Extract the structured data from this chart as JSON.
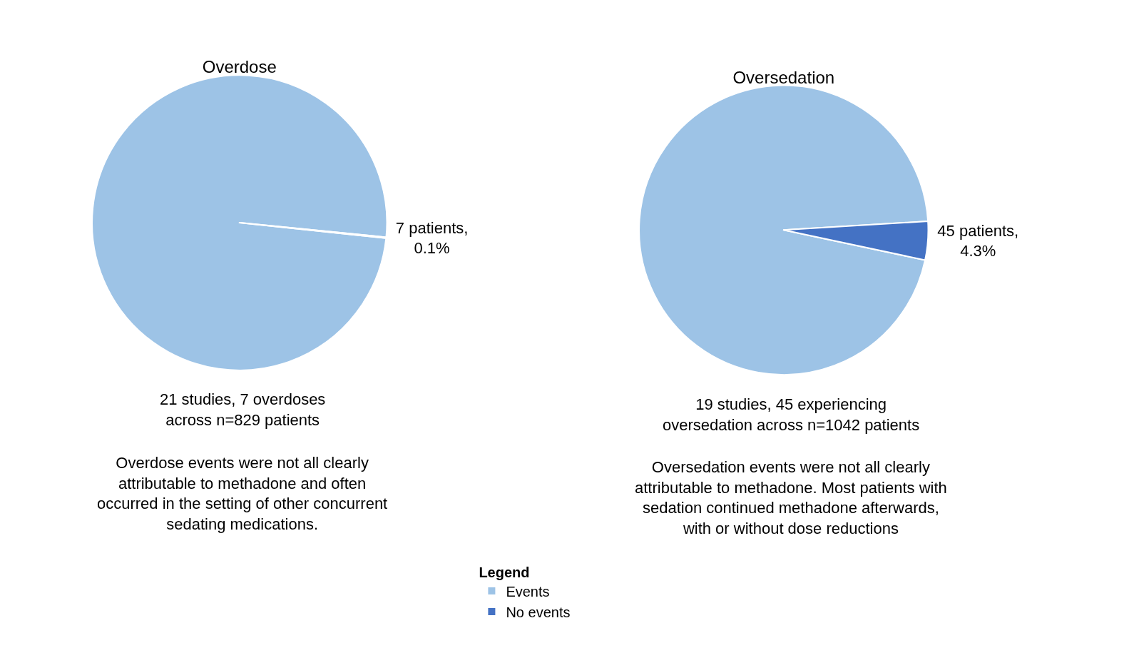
{
  "chart_data": [
    {
      "type": "pie",
      "title": "Overdose",
      "categories": [
        "Events",
        "No events"
      ],
      "values": [
        99.9,
        0.1
      ],
      "colors": [
        "#9dc3e6",
        "#4472c4"
      ],
      "value_labels": [
        null,
        "7 patients,\n0.1%"
      ],
      "legend": "bottom",
      "legend_title": "Legend",
      "annotations": [
        "21 studies, 7 overdoses\nacross n=829 patients",
        "Overdose events were not all clearly\nattributable to methadone and often\noccurred in the setting of other concurrent\nsedating medications."
      ]
    },
    {
      "type": "pie",
      "title": "Oversedation",
      "categories": [
        null,
        null
      ],
      "values": [
        95.7,
        4.3
      ],
      "colors": [
        "#9dc3e6",
        "#4472c4"
      ],
      "value_labels": [
        null,
        "45 patients,\n4.3%"
      ],
      "annotations": [
        "19 studies, 45 experiencing\noversedation across n=1042 patients",
        "Oversedation events were not all clearly\nattributable to methadone. Most patients with\nsedation continued methadone afterwards,\nwith or without dose reductions"
      ]
    }
  ]
}
